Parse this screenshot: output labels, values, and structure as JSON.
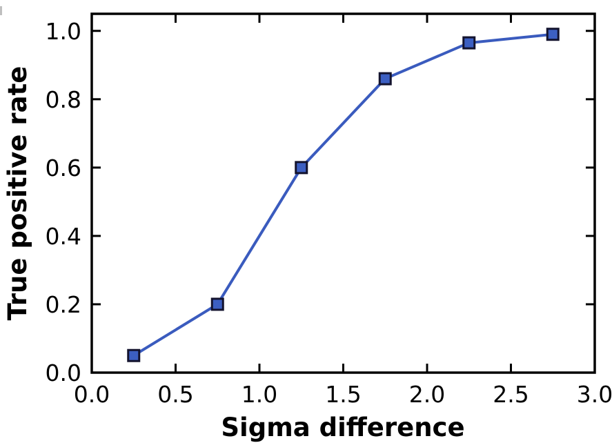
{
  "figure": {
    "background": "#ffffff"
  },
  "chart_data": {
    "type": "line",
    "title": "",
    "xlabel": "Sigma difference",
    "ylabel": "True positive rate",
    "x": [
      0.25,
      0.75,
      1.25,
      1.75,
      2.25,
      2.75
    ],
    "y": [
      0.05,
      0.2,
      0.6,
      0.86,
      0.965,
      0.99
    ],
    "xlim": [
      0.0,
      3.0
    ],
    "ylim": [
      0.0,
      1.05
    ],
    "xticks": {
      "values": [
        0.0,
        0.5,
        1.0,
        1.5,
        2.0,
        2.5,
        3.0
      ],
      "labels": [
        "0.0",
        "0.5",
        "1.0",
        "1.5",
        "2.0",
        "2.5",
        "3.0"
      ]
    },
    "yticks": {
      "values": [
        0.0,
        0.2,
        0.4,
        0.6,
        0.8,
        1.0
      ],
      "labels": [
        "0.0",
        "0.2",
        "0.4",
        "0.6",
        "0.8",
        "1.0"
      ]
    },
    "grid": false,
    "legend": null,
    "marker": "square",
    "tick_direction": "in",
    "ticks_all_sides": true,
    "colors": {
      "line": "#3A5BBE",
      "marker_fill": "#3C5FC2",
      "marker_edge": "#13132E",
      "axis": "#000000"
    }
  }
}
